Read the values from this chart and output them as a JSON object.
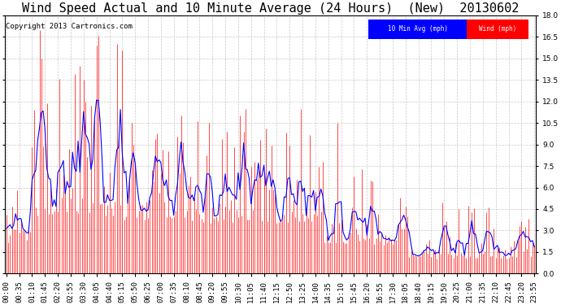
{
  "title": "Wind Speed Actual and 10 Minute Average (24 Hours)  (New)  20130602",
  "copyright": "Copyright 2013 Cartronics.com",
  "legend_labels": [
    "10 Min Avg (mph)",
    "Wind (mph)"
  ],
  "legend_bg_colors": [
    "blue",
    "red"
  ],
  "ylim": [
    0,
    18.0
  ],
  "yticks": [
    0.0,
    1.5,
    3.0,
    4.5,
    6.0,
    7.5,
    9.0,
    10.5,
    12.0,
    13.5,
    15.0,
    16.5,
    18.0
  ],
  "bg_color": "#ffffff",
  "grid_color": "#bbbbbb",
  "title_fontsize": 11,
  "copyright_fontsize": 6.5,
  "tick_label_fontsize": 6.5,
  "n_points": 288,
  "tick_interval": 35
}
